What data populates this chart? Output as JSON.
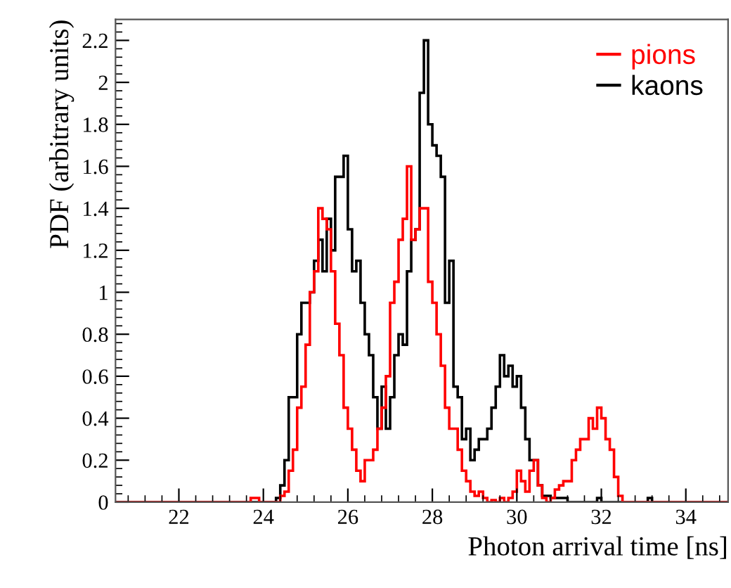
{
  "chart_data": {
    "type": "histogram",
    "xlabel": "Photon arrival time [ns]",
    "ylabel": "PDF (arbitrary units)",
    "bins": [
      20.5,
      23.5,
      23.6,
      23.7,
      23.8,
      23.9,
      24.0,
      24.1,
      24.2,
      24.3,
      24.4,
      24.5,
      24.6,
      24.7,
      24.8,
      24.9,
      25.0,
      25.1,
      25.2,
      25.3,
      25.4,
      25.5,
      25.6,
      25.7,
      25.8,
      25.9,
      26.0,
      26.1,
      26.2,
      26.3,
      26.4,
      26.5,
      26.6,
      26.7,
      26.8,
      26.9,
      27.0,
      27.1,
      27.2,
      27.3,
      27.4,
      27.5,
      27.6,
      27.7,
      27.8,
      27.9,
      28.0,
      28.1,
      28.2,
      28.3,
      28.4,
      28.5,
      28.6,
      28.7,
      28.8,
      28.9,
      29.0,
      29.1,
      29.2,
      29.3,
      29.4,
      29.5,
      29.6,
      29.7,
      29.8,
      29.9,
      30.0,
      30.1,
      30.2,
      30.3,
      30.4,
      30.5,
      30.6,
      30.7,
      30.8,
      30.9,
      31.0,
      31.1,
      31.2,
      31.3,
      31.4,
      31.5,
      31.6,
      31.7,
      31.8,
      31.9,
      32.0,
      32.1,
      32.2,
      32.3,
      32.4,
      32.5,
      32.6,
      32.7,
      32.8,
      32.9,
      33.0,
      33.1,
      33.2,
      33.3,
      33.4,
      33.5,
      35.0
    ],
    "series": [
      {
        "name": "kaons",
        "color": "#000000",
        "values": [
          0,
          0,
          0,
          0,
          0,
          0,
          0,
          0,
          0,
          0.02,
          0.08,
          0.2,
          0.5,
          0.5,
          0.8,
          0.95,
          0.95,
          1.0,
          1.15,
          1.25,
          1.1,
          1.35,
          1.2,
          1.55,
          1.55,
          1.65,
          1.3,
          1.1,
          1.15,
          0.95,
          0.8,
          0.7,
          0.5,
          0.35,
          0.55,
          0.35,
          0.5,
          0.7,
          0.8,
          0.75,
          1.1,
          1.25,
          1.3,
          1.95,
          2.2,
          1.8,
          1.7,
          1.65,
          1.55,
          0.95,
          1.15,
          0.55,
          0.5,
          0.3,
          0.35,
          0.2,
          0.25,
          0.3,
          0.3,
          0.35,
          0.45,
          0.55,
          0.7,
          0.6,
          0.65,
          0.55,
          0.6,
          0.45,
          0.3,
          0.2,
          0.2,
          0.08,
          0.03,
          0.03,
          0.02,
          0.02,
          0.02,
          0.02,
          0,
          0,
          0,
          0,
          0,
          0,
          0,
          0.02,
          0,
          0,
          0,
          0,
          0,
          0,
          0,
          0,
          0,
          0,
          0,
          0.02,
          0,
          0,
          0,
          0
        ]
      },
      {
        "name": "pions",
        "color": "#ff0000",
        "values": [
          0,
          0,
          0,
          0.02,
          0.02,
          0,
          0,
          0,
          0,
          0,
          0.03,
          0.05,
          0.15,
          0.25,
          0.45,
          0.55,
          0.75,
          1.0,
          1.1,
          1.4,
          1.35,
          1.3,
          1.1,
          0.85,
          0.7,
          0.45,
          0.35,
          0.25,
          0.15,
          0.1,
          0.2,
          0.2,
          0.25,
          0.35,
          0.45,
          0.6,
          0.95,
          1.05,
          1.25,
          1.35,
          1.6,
          1.25,
          1.3,
          1.4,
          1.4,
          1.05,
          0.95,
          0.8,
          0.65,
          0.45,
          0.35,
          0.35,
          0.25,
          0.15,
          0.1,
          0.05,
          0.03,
          0.05,
          0.02,
          0,
          0.01,
          0,
          0.02,
          0,
          0.02,
          0.05,
          0.15,
          0.1,
          0.05,
          0.15,
          0.2,
          0.08,
          0.02,
          0,
          0.02,
          0.06,
          0.08,
          0.1,
          0.1,
          0.2,
          0.25,
          0.3,
          0.3,
          0.4,
          0.35,
          0.45,
          0.4,
          0.3,
          0.25,
          0.12,
          0.03,
          0,
          0,
          0,
          0,
          0,
          0,
          0,
          0,
          0,
          0,
          0
        ]
      }
    ],
    "xlim": [
      20.5,
      35
    ],
    "ylim": [
      0,
      2.3
    ],
    "xticks": [
      22,
      24,
      26,
      28,
      30,
      32,
      34
    ],
    "yticks": [
      0,
      0.2,
      0.4,
      0.6,
      0.8,
      1,
      1.2,
      1.4,
      1.6,
      1.8,
      2,
      2.2
    ],
    "legend": "top right",
    "grid": false
  }
}
